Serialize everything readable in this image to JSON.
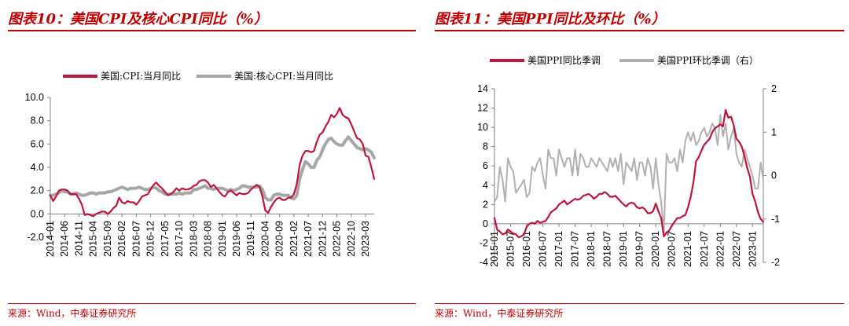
{
  "left": {
    "title": "图表10：美国CPI及核心CPI同比（%）",
    "source": "来源：Wind，中泰证券研究所"
  },
  "right": {
    "title": "图表11：美国PPI同比及环比（%）",
    "source": "来源：Wind，中泰证券研究所"
  },
  "colors": {
    "accent": "#c00000",
    "series_red": "#c0143c",
    "series_gray": "#a6a6a6"
  },
  "chart_data": [
    {
      "type": "line",
      "title": "图表10：美国CPI及核心CPI同比（%）",
      "ylim": [
        -2.0,
        10.0
      ],
      "yticks": [
        "-2.0",
        "0.0",
        "2.0",
        "4.0",
        "6.0",
        "8.0",
        "10.0"
      ],
      "xticks": [
        "2014-01",
        "2014-06",
        "2014-11",
        "2015-04",
        "2015-09",
        "2016-02",
        "2016-07",
        "2016-12",
        "2017-05",
        "2017-10",
        "2018-03",
        "2018-08",
        "2019-01",
        "2019-06",
        "2019-11",
        "2020-04",
        "2020-09",
        "2021-02",
        "2021-07",
        "2021-12",
        "2022-05",
        "2022-10",
        "2023-03"
      ],
      "x_start": "2014-01",
      "legend_position": "top",
      "series": [
        {
          "name": "美国:CPI:当月同比",
          "color": "#c0143c",
          "values": [
            1.6,
            1.1,
            1.5,
            2.0,
            2.1,
            2.1,
            2.0,
            1.7,
            1.7,
            1.7,
            1.3,
            0.8,
            -0.1,
            0.0,
            -0.1,
            -0.2,
            0.0,
            0.1,
            0.2,
            0.2,
            0.0,
            0.2,
            0.5,
            0.7,
            1.4,
            1.0,
            0.9,
            1.1,
            1.0,
            1.0,
            0.8,
            1.1,
            1.5,
            1.6,
            1.7,
            2.1,
            2.5,
            2.7,
            2.4,
            2.2,
            1.9,
            1.6,
            1.7,
            1.9,
            2.2,
            2.0,
            2.2,
            2.1,
            2.1,
            2.2,
            2.4,
            2.5,
            2.8,
            2.9,
            2.9,
            2.7,
            2.3,
            2.5,
            2.2,
            1.9,
            1.6,
            1.5,
            1.9,
            2.0,
            1.8,
            1.6,
            1.8,
            1.7,
            1.7,
            1.8,
            2.1,
            2.3,
            2.5,
            2.3,
            1.5,
            0.3,
            0.1,
            0.6,
            1.0,
            1.3,
            1.4,
            1.2,
            1.2,
            1.4,
            1.4,
            1.7,
            2.6,
            4.2,
            5.0,
            5.4,
            5.4,
            5.3,
            5.4,
            6.2,
            6.8,
            7.0,
            7.5,
            7.9,
            8.5,
            8.3,
            8.6,
            9.1,
            8.5,
            8.3,
            8.2,
            7.7,
            7.1,
            6.5,
            6.4,
            6.0,
            5.0,
            4.9,
            4.0,
            3.0
          ]
        },
        {
          "name": "美国:核心CPI:当月同比",
          "color": "#a6a6a6",
          "values": [
            1.6,
            1.6,
            1.7,
            1.8,
            2.0,
            1.9,
            1.9,
            1.7,
            1.7,
            1.8,
            1.7,
            1.6,
            1.6,
            1.7,
            1.8,
            1.8,
            1.7,
            1.8,
            1.8,
            1.8,
            1.9,
            1.9,
            2.0,
            2.1,
            2.2,
            2.3,
            2.2,
            2.1,
            2.2,
            2.2,
            2.2,
            2.3,
            2.2,
            2.1,
            2.1,
            2.2,
            2.3,
            2.2,
            2.0,
            1.9,
            1.7,
            1.7,
            1.7,
            1.7,
            1.7,
            1.8,
            1.7,
            1.8,
            1.8,
            1.8,
            2.1,
            2.1,
            2.2,
            2.3,
            2.4,
            2.2,
            2.2,
            2.1,
            2.2,
            2.2,
            2.2,
            2.1,
            2.0,
            2.1,
            2.0,
            2.1,
            2.2,
            2.4,
            2.4,
            2.3,
            2.3,
            2.3,
            2.3,
            2.4,
            2.1,
            1.4,
            1.2,
            1.2,
            1.6,
            1.7,
            1.7,
            1.6,
            1.6,
            1.6,
            1.4,
            1.3,
            1.6,
            3.0,
            3.8,
            4.5,
            4.3,
            4.0,
            4.0,
            4.6,
            4.9,
            5.5,
            6.0,
            6.4,
            6.5,
            6.2,
            6.0,
            5.9,
            5.9,
            6.3,
            6.6,
            6.3,
            6.0,
            5.7,
            5.6,
            5.5,
            5.6,
            5.5,
            5.3,
            4.8
          ]
        }
      ]
    },
    {
      "type": "line",
      "title": "图表11：美国PPI同比及环比（%）",
      "ylim": [
        -4,
        14
      ],
      "yticks": [
        "-4",
        "-2",
        "0",
        "2",
        "4",
        "6",
        "8",
        "10",
        "12",
        "14"
      ],
      "ylim_right": [
        -2,
        2
      ],
      "yticks_right": [
        "-2",
        "-1",
        "0",
        "1",
        "2"
      ],
      "xticks": [
        "2015-01",
        "2015-07",
        "2016-01",
        "2016-07",
        "2017-01",
        "2017-07",
        "2018-01",
        "2018-07",
        "2019-01",
        "2019-07",
        "2020-01",
        "2020-07",
        "2021-01",
        "2021-07",
        "2022-01",
        "2022-07",
        "2023-01"
      ],
      "x_start": "2015-01",
      "legend_position": "top",
      "series": [
        {
          "name": "美国PPI同比季调",
          "color": "#c0143c",
          "axis": "left",
          "values": [
            0.6,
            -0.6,
            -0.8,
            -1.1,
            -1.0,
            -0.6,
            -0.8,
            -1.0,
            -1.1,
            -1.4,
            -1.3,
            -1.1,
            -0.3,
            0.0,
            0.1,
            0.0,
            0.3,
            0.1,
            0.2,
            0.3,
            0.7,
            1.2,
            1.4,
            1.6,
            2.0,
            2.2,
            2.4,
            2.0,
            2.2,
            2.4,
            2.6,
            2.5,
            2.6,
            2.9,
            3.0,
            3.1,
            2.9,
            2.6,
            2.8,
            3.1,
            3.1,
            3.3,
            3.1,
            2.8,
            2.8,
            2.9,
            2.6,
            2.3,
            2.0,
            1.8,
            2.1,
            2.2,
            2.1,
            1.7,
            1.6,
            1.7,
            1.5,
            1.1,
            1.1,
            1.3,
            2.1,
            1.3,
            0.6,
            -1.3,
            -0.9,
            -0.7,
            -0.2,
            0.2,
            0.6,
            0.6,
            0.8,
            0.9,
            1.7,
            2.8,
            4.3,
            6.5,
            6.9,
            7.6,
            8.2,
            8.5,
            8.8,
            9.5,
            9.9,
            10.1,
            10.3,
            10.1,
            11.8,
            11.0,
            11.1,
            10.2,
            8.8,
            8.5,
            8.0,
            7.0,
            5.8,
            4.9,
            3.1,
            2.3,
            1.2,
            0.5,
            0.2
          ]
        },
        {
          "name": "美国PPI环比季调（右）",
          "color": "#b0b0b0",
          "axis": "right",
          "values": [
            -0.6,
            -0.5,
            0.2,
            -0.1,
            -0.6,
            0.4,
            0.2,
            0.1,
            -0.4,
            -0.3,
            -0.2,
            -0.1,
            -0.5,
            -0.4,
            0.2,
            0.1,
            0.3,
            0.4,
            0.0,
            -0.3,
            0.6,
            0.4,
            0.4,
            0.0,
            0.6,
            0.4,
            0.2,
            0.4,
            0.4,
            0.0,
            0.6,
            0.0,
            0.5,
            0.4,
            0.2,
            0.2,
            0.4,
            0.3,
            0.2,
            0.4,
            0.3,
            0.2,
            0.1,
            0.4,
            0.2,
            0.4,
            0.1,
            0.5,
            -0.2,
            0.3,
            0.2,
            0.1,
            0.4,
            -0.1,
            0.3,
            0.3,
            0.0,
            0.4,
            0.2,
            -0.3,
            0.4,
            -0.2,
            -0.6,
            -1.3,
            0.5,
            0.3,
            0.3,
            0.4,
            0.1,
            0.6,
            0.3,
            0.8,
            1.0,
            0.8,
            1.0,
            0.7,
            0.8,
            1.0,
            1.1,
            0.9,
            1.0,
            1.2,
            1.1,
            0.7,
            1.4,
            0.9,
            1.2,
            0.6,
            0.9,
            1.1,
            0.5,
            0.3,
            0.2,
            0.6,
            0.4,
            0.2,
            0.0,
            -0.3,
            -0.3,
            0.3,
            -0.1
          ]
        }
      ]
    }
  ]
}
